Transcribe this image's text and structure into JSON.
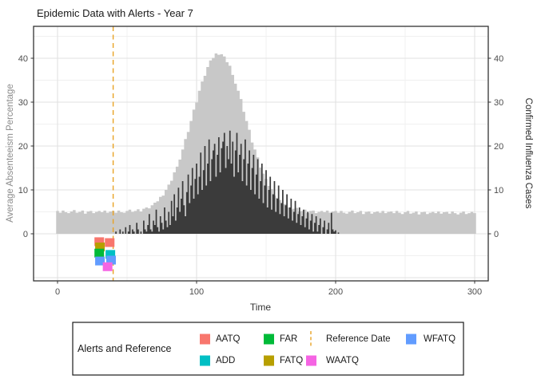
{
  "title": "Epidemic Data with Alerts - Year 7",
  "axes": {
    "x": {
      "label": "Time",
      "tick_labels": [
        "0",
        "100",
        "200",
        "300"
      ],
      "major_ticks": [
        0,
        100,
        200,
        300
      ],
      "minor_ticks": [
        50,
        150,
        250
      ]
    },
    "y_left": {
      "label": "Average Absenteeism Percentage",
      "tick_labels": [
        "0",
        "10",
        "20",
        "30",
        "40"
      ],
      "major_gridlines": [
        -10,
        0,
        10,
        20,
        30,
        40
      ],
      "minor_gridlines": [
        -5,
        5,
        15,
        25,
        35,
        45
      ],
      "labeled_ticks": [
        0,
        10,
        20,
        30,
        40
      ]
    },
    "y_right": {
      "label": "Confirmed Influenza Cases",
      "tick_labels": [
        "0",
        "10",
        "20",
        "30",
        "40"
      ],
      "labeled_ticks": [
        0,
        10,
        20,
        30,
        40
      ]
    }
  },
  "colors": {
    "AATQ": "#F8766D",
    "ADD": "#00BFC4",
    "FAR": "#00BA38",
    "FATQ": "#B79F00",
    "WAATQ": "#F564E3",
    "WFATQ": "#619CFF",
    "reference": "#E8A223",
    "absenteeism_area": "#C8C8C8",
    "cases_area": "#3B3B3B",
    "grid_major": "#E2E2E2",
    "grid_minor": "#F0F0F0",
    "panel_border": "#333333",
    "axis_title_left": "#8C8C8C",
    "axis_title_right": "#262626"
  },
  "legend": {
    "title": "Alerts and Reference",
    "entries": [
      {
        "label": "AATQ",
        "swatch": "square",
        "color_key": "AATQ",
        "col": 1,
        "row": 1
      },
      {
        "label": "ADD",
        "swatch": "square",
        "color_key": "ADD",
        "col": 1,
        "row": 2
      },
      {
        "label": "FAR",
        "swatch": "square",
        "color_key": "FAR",
        "col": 2,
        "row": 1
      },
      {
        "label": "FATQ",
        "swatch": "square",
        "color_key": "FATQ",
        "col": 2,
        "row": 2
      },
      {
        "label": "Reference Date",
        "swatch": "dashed-line",
        "color_key": "reference",
        "col": 3,
        "row": 1
      },
      {
        "label": "WAATQ",
        "swatch": "square",
        "color_key": "WAATQ",
        "col": 3,
        "row": 2
      },
      {
        "label": "WFATQ",
        "swatch": "square",
        "color_key": "WFATQ",
        "col": 4,
        "row": 1
      }
    ]
  },
  "chart_data": {
    "type": "area",
    "title": "Epidemic Data with Alerts - Year 7",
    "xlabel": "Time",
    "ylabel_left": "Average Absenteeism Percentage",
    "ylabel_right": "Confirmed Influenza Cases",
    "x_axis_ticks": [
      0,
      100,
      200,
      300
    ],
    "y_axis_ticks": [
      0,
      10,
      20,
      30,
      40
    ],
    "grid": true,
    "legend_position": "bottom",
    "reference_date": 40,
    "series": [
      {
        "name": "absenteeism_pct",
        "axis": "left",
        "color": "#C8C8C8",
        "x_start": 0,
        "x_step": 2,
        "values": [
          5.2,
          4.8,
          5.3,
          4.9,
          4.7,
          5.1,
          5.4,
          4.8,
          5.0,
          5.3,
          4.6,
          5.1,
          5.2,
          4.7,
          5.0,
          5.2,
          4.9,
          5.3,
          4.8,
          5.1,
          5.2,
          4.8,
          5.3,
          4.9,
          4.8,
          5.2,
          5.5,
          5.0,
          5.2,
          5.6,
          5.1,
          5.7,
          6.0,
          5.8,
          6.5,
          7.1,
          7.4,
          8.4,
          8.7,
          10.0,
          11.2,
          12.1,
          14.0,
          15.3,
          16.9,
          19.2,
          21.6,
          23.2,
          25.7,
          28.3,
          29.9,
          32.6,
          34.7,
          36.0,
          38.0,
          39.5,
          40.1,
          41.1,
          40.8,
          40.9,
          40.4,
          39.1,
          38.3,
          36.2,
          34.2,
          32.6,
          30.7,
          27.8,
          25.7,
          23.7,
          20.8,
          19.2,
          17.4,
          15.1,
          13.7,
          12.5,
          10.9,
          10.2,
          8.7,
          8.2,
          7.7,
          6.7,
          6.8,
          6.0,
          5.5,
          5.7,
          5.9,
          5.1,
          5.2,
          5.5,
          4.7,
          5.2,
          5.3,
          4.7,
          5.0,
          5.2,
          4.9,
          5.3,
          4.8,
          5.1,
          5.2,
          4.8,
          5.2,
          4.8,
          4.6,
          5.0,
          5.3,
          4.7,
          4.9,
          5.2,
          4.5,
          5.0,
          5.1,
          4.6,
          4.9,
          5.1,
          4.8,
          5.2,
          4.7,
          5.0,
          5.1,
          4.7,
          5.2,
          4.8,
          4.5,
          4.9,
          5.2,
          4.6,
          4.8,
          5.1,
          4.4,
          4.9,
          5.0,
          4.5,
          4.8,
          5.0,
          4.7,
          5.1,
          4.6,
          4.9,
          5.0,
          4.6,
          5.1,
          4.7,
          4.4,
          4.8,
          5.1,
          4.5,
          4.7,
          5.0,
          4.7
        ]
      },
      {
        "name": "confirmed_cases",
        "axis": "right",
        "color": "#3B3B3B",
        "x_start": 40,
        "x_step": 1,
        "values": [
          0,
          0,
          0.5,
          0,
          0,
          1,
          0,
          0.5,
          0,
          1.5,
          0,
          0.5,
          2,
          0,
          1,
          0.5,
          0,
          2.5,
          1,
          0,
          0.5,
          0,
          3,
          1,
          0.5,
          2,
          4.5,
          1,
          0.5,
          3,
          2,
          5.5,
          1.5,
          0.5,
          4,
          2.5,
          1,
          6,
          3,
          1.5,
          5,
          2,
          7.5,
          4,
          9,
          3,
          6,
          10.5,
          5,
          8,
          12,
          6.5,
          4,
          9.5,
          13.5,
          7,
          11,
          15,
          8,
          12.5,
          16,
          9,
          13,
          18.5,
          10,
          14.5,
          20,
          11,
          16,
          21.5,
          12,
          17,
          19,
          20.5,
          13,
          18,
          22,
          14,
          19.5,
          21,
          23,
          15,
          20,
          17,
          23.5,
          16,
          21,
          13,
          19,
          23,
          14,
          18,
          20.5,
          12,
          17,
          21.5,
          11,
          16,
          19,
          10,
          15,
          18,
          9,
          13.5,
          17,
          8,
          12,
          16,
          7,
          11,
          14.5,
          6,
          10,
          13,
          5.5,
          9,
          12,
          5,
          8,
          11,
          4.5,
          7,
          10,
          4,
          6.5,
          9,
          3.5,
          6,
          8,
          3,
          5,
          7.5,
          2.5,
          4.5,
          6,
          2,
          4,
          5.5,
          1.5,
          3.5,
          5,
          1,
          3,
          4.5,
          0.5,
          2.5,
          4,
          0.5,
          2,
          3.5,
          0,
          1.5,
          3,
          0,
          1,
          2.5,
          0,
          4.8,
          1,
          0.5,
          0.8,
          0,
          0.3,
          0,
          0,
          0
        ]
      }
    ],
    "alert_points": [
      {
        "type": "AATQ",
        "x": 30.0,
        "y": -1.8
      },
      {
        "type": "AATQ",
        "x": 37.5,
        "y": -2.0
      },
      {
        "type": "FATQ",
        "x": 30.5,
        "y": -3.0
      },
      {
        "type": "FAR",
        "x": 30.0,
        "y": -4.4
      },
      {
        "type": "ADD",
        "x": 38.0,
        "y": -4.7
      },
      {
        "type": "WFATQ",
        "x": 30.5,
        "y": -6.2
      },
      {
        "type": "WFATQ",
        "x": 38.5,
        "y": -6.0
      },
      {
        "type": "WAATQ",
        "x": 36.0,
        "y": -7.5
      }
    ]
  }
}
